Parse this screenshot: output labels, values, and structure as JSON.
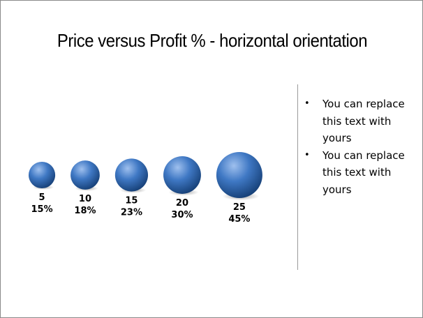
{
  "slide": {
    "title": "Price versus Profit % - horizontal orientation",
    "bullets": [
      {
        "marker": "•",
        "text": "You can replace this text with yours"
      },
      {
        "marker": "•",
        "text": "You can replace this text with yours"
      }
    ]
  },
  "colors": {
    "bubble_highlight": "#9fc0ee",
    "bubble_mid": "#3f78c4",
    "bubble_dark": "#143d73",
    "divider": "#9a9a9a"
  },
  "chart_data": {
    "type": "scatter",
    "title": "Price versus Profit % - horizontal orientation",
    "points": [
      {
        "price": 5,
        "profit_pct": 15,
        "price_label": "5",
        "profit_label": "15%"
      },
      {
        "price": 10,
        "profit_pct": 18,
        "profit_label": "18%",
        "price_label": "10"
      },
      {
        "price": 15,
        "profit_pct": 23,
        "price_label": "15",
        "profit_label": "23%"
      },
      {
        "price": 20,
        "profit_pct": 30,
        "price_label": "20",
        "profit_label": "30%"
      },
      {
        "price": 25,
        "profit_pct": 45,
        "price_label": "25",
        "profit_label": "45%"
      }
    ],
    "size_encodes": "profit_pct",
    "grid": false,
    "axes_visible": false
  }
}
